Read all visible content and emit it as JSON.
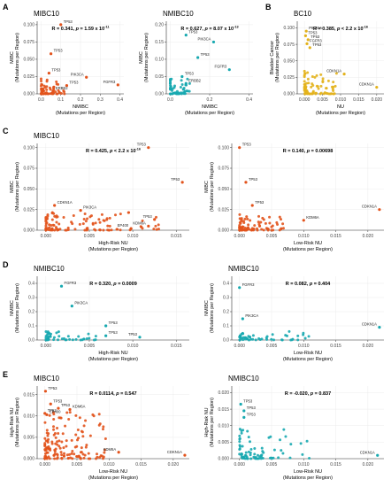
{
  "figure": {
    "panel_letters": [
      "A",
      "B",
      "C",
      "D",
      "E"
    ]
  },
  "chart_data": [
    {
      "id": "A1",
      "panel": "A",
      "type": "scatter",
      "title": "MIBC10",
      "xlabel": "NMIBC",
      "xlabel2": "(Mutations per Region)",
      "ylabel": "MIBC",
      "ylabel2": "(Mutations per Region)",
      "annotation": {
        "prefix": "R = 0.341, ",
        "p": "p",
        "mid": " = 1.59 x 10",
        "sup": "-11"
      },
      "xlim": [
        -0.02,
        0.42
      ],
      "ylim": [
        0,
        0.105
      ],
      "xticks": [
        0.0,
        0.1,
        0.2,
        0.3,
        0.4
      ],
      "xtick_labels": [
        "0.0",
        "0.1",
        "0.2",
        "0.3",
        "0.4"
      ],
      "yticks": [
        0.0,
        0.025,
        0.05,
        0.075,
        0.1
      ],
      "ytick_labels": [
        "0.000",
        "0.025",
        "0.050",
        "0.075",
        "0.100"
      ],
      "color": "#e2531c",
      "labeled_points": [
        {
          "label": "TP53",
          "x": 0.1,
          "y": 0.1
        },
        {
          "label": "TP53",
          "x": 0.05,
          "y": 0.058
        },
        {
          "label": "PIK3CA",
          "x": 0.23,
          "y": 0.024
        },
        {
          "label": "FGFR3",
          "x": 0.39,
          "y": 0.013
        },
        {
          "label": "TP53",
          "x": 0.13,
          "y": 0.012
        },
        {
          "label": "TP53",
          "x": 0.04,
          "y": 0.03
        },
        {
          "label": "ERBB2",
          "x": 0.06,
          "y": 0.004
        }
      ],
      "cluster": {
        "x": [
          0.0,
          0.12
        ],
        "y": [
          0.0,
          0.022
        ],
        "n": 70
      }
    },
    {
      "id": "A2",
      "panel": "A",
      "type": "scatter",
      "title": "NMIBC10",
      "xlabel": "NMIBC",
      "xlabel2": "(Mutations per Region)",
      "ylabel": "MIBC",
      "ylabel2": "(Mutations per Region)",
      "annotation": {
        "prefix": "R = 0.627, ",
        "p": "p",
        "mid": " = 8.07 x 10",
        "sup": "-13"
      },
      "xlim": [
        -0.02,
        0.42
      ],
      "ylim": [
        0,
        0.21
      ],
      "xticks": [
        0.0,
        0.2,
        0.4
      ],
      "xtick_labels": [
        "0.0",
        "0.2",
        "0.4"
      ],
      "yticks": [
        0.0,
        0.05,
        0.1,
        0.15,
        0.2
      ],
      "ytick_labels": [
        "0.00",
        "0.05",
        "0.10",
        "0.15",
        "0.20"
      ],
      "color": "#17a9b0",
      "labeled_points": [
        {
          "label": "TP53",
          "x": 0.08,
          "y": 0.17
        },
        {
          "label": "PIK3CA",
          "x": 0.22,
          "y": 0.15
        },
        {
          "label": "TP53",
          "x": 0.14,
          "y": 0.105
        },
        {
          "label": "FGFR3",
          "x": 0.3,
          "y": 0.07
        },
        {
          "label": "TP53",
          "x": 0.06,
          "y": 0.05
        },
        {
          "label": "ERBB2",
          "x": 0.08,
          "y": 0.03
        }
      ],
      "cluster": {
        "x": [
          0.0,
          0.1
        ],
        "y": [
          0.0,
          0.045
        ],
        "n": 55
      }
    },
    {
      "id": "B",
      "panel": "B",
      "type": "scatter",
      "title": "BC10",
      "xlabel": "NU",
      "xlabel2": "(Mutations per Region)",
      "ylabel": "Bladder Cancer",
      "ylabel2": "(Mutations per Region)",
      "annotation": {
        "prefix": "R = 0.385, ",
        "p": "p",
        "mid": " < 2.2 x 10",
        "sup": "-16"
      },
      "xlim": [
        -0.002,
        0.022
      ],
      "ylim": [
        0,
        0.11
      ],
      "xticks": [
        0.0,
        0.005,
        0.01,
        0.015,
        0.02
      ],
      "xtick_labels": [
        "0.000",
        "0.005",
        "0.010",
        "0.015",
        "0.020"
      ],
      "yticks": [
        0.0,
        0.025,
        0.05,
        0.075,
        0.1
      ],
      "ytick_labels": [
        "0.000",
        "0.025",
        "0.050",
        "0.075",
        "0.100"
      ],
      "color": "#e3b21c",
      "labeled_points": [
        {
          "label": "PIK3CA",
          "x": 0.0005,
          "y": 0.095
        },
        {
          "label": "TP53",
          "x": 0.0003,
          "y": 0.088
        },
        {
          "label": "TP53",
          "x": 0.001,
          "y": 0.082
        },
        {
          "label": "FGFR3",
          "x": 0.0007,
          "y": 0.076
        },
        {
          "label": "TP53",
          "x": 0.0015,
          "y": 0.07
        },
        {
          "label": "CDKN1A",
          "x": 0.011,
          "y": 0.03
        },
        {
          "label": "CDKN1A",
          "x": 0.02,
          "y": 0.01
        }
      ],
      "cluster": {
        "x": [
          0.0,
          0.009
        ],
        "y": [
          0.0,
          0.035
        ],
        "n": 80
      }
    },
    {
      "id": "C1",
      "panel": "C",
      "type": "scatter",
      "title": "MIBC10",
      "xlabel": "High-Risk NU",
      "xlabel2": "(Mutations per Region)",
      "ylabel": "MIBC",
      "ylabel2": "(Mutations per Region)",
      "annotation": {
        "prefix": "R = 0.425, ",
        "p": "p",
        "mid": " < 2.2 x 10",
        "sup": "-16"
      },
      "xlim": [
        -0.001,
        0.0165
      ],
      "ylim": [
        0,
        0.105
      ],
      "xticks": [
        0.0,
        0.005,
        0.01,
        0.015
      ],
      "xtick_labels": [
        "0.000",
        "0.005",
        "0.010",
        "0.015"
      ],
      "yticks": [
        0.0,
        0.025,
        0.05,
        0.075,
        0.1
      ],
      "ytick_labels": [
        "0.000",
        "0.025",
        "0.050",
        "0.075",
        "0.100"
      ],
      "color": "#e2531c",
      "labeled_points": [
        {
          "label": "TP53",
          "x": 0.0118,
          "y": 0.1
        },
        {
          "label": "TP53",
          "x": 0.0157,
          "y": 0.058
        },
        {
          "label": "CDKN1A",
          "x": 0.001,
          "y": 0.03
        },
        {
          "label": "PIK3CA",
          "x": 0.004,
          "y": 0.024
        },
        {
          "label": "TP53",
          "x": 0.0125,
          "y": 0.013
        },
        {
          "label": "KDM6A",
          "x": 0.0118,
          "y": 0.005
        },
        {
          "label": "EP400",
          "x": 0.0098,
          "y": 0.002
        }
      ],
      "cluster": {
        "x": [
          0.0,
          0.013
        ],
        "y": [
          0.0,
          0.022
        ],
        "n": 110
      }
    },
    {
      "id": "C2",
      "panel": "C",
      "type": "scatter",
      "title": "",
      "xlabel": "Low-Risk NU",
      "xlabel2": "(Mutations per Region)",
      "ylabel": "MIBC",
      "ylabel2": "(Mutations per Region)",
      "annotation": {
        "prefix": "R = 0.140, ",
        "p": "p",
        "mid": " = 0.00698",
        "sup": ""
      },
      "xlim": [
        -0.0012,
        0.0225
      ],
      "ylim": [
        0,
        0.105
      ],
      "xticks": [
        0.0,
        0.005,
        0.01,
        0.015,
        0.02
      ],
      "xtick_labels": [
        "0.000",
        "0.005",
        "0.010",
        "0.015",
        "0.020"
      ],
      "yticks": [
        0.0,
        0.025,
        0.05,
        0.075,
        0.1
      ],
      "ytick_labels": [
        "0.000",
        "0.025",
        "0.050",
        "0.075",
        "0.100"
      ],
      "color": "#e2531c",
      "labeled_points": [
        {
          "label": "TP53",
          "x": 0.0,
          "y": 0.1
        },
        {
          "label": "TP53",
          "x": 0.001,
          "y": 0.058
        },
        {
          "label": "TP53",
          "x": 0.002,
          "y": 0.03
        },
        {
          "label": "KDM6A",
          "x": 0.01,
          "y": 0.012
        },
        {
          "label": "CDKN1A",
          "x": 0.0218,
          "y": 0.025
        }
      ],
      "cluster": {
        "x": [
          0.0,
          0.007
        ],
        "y": [
          0.0,
          0.02
        ],
        "n": 100
      }
    },
    {
      "id": "D1",
      "panel": "D",
      "type": "scatter",
      "title": "NMIBC10",
      "xlabel": "High-Risk NU",
      "xlabel2": "(Mutations per Region)",
      "ylabel": "NMIBC",
      "ylabel2": "(Mutations per Region)",
      "annotation": {
        "prefix": "R = 0.320, ",
        "p": "p",
        "mid": " = 0.0009",
        "sup": ""
      },
      "xlim": [
        -0.001,
        0.0165
      ],
      "ylim": [
        0,
        0.45
      ],
      "xticks": [
        0.0,
        0.005,
        0.01,
        0.015
      ],
      "xtick_labels": [
        "0.000",
        "0.005",
        "0.010",
        "0.015"
      ],
      "yticks": [
        0.0,
        0.1,
        0.2,
        0.3,
        0.4
      ],
      "ytick_labels": [
        "0.0",
        "0.1",
        "0.2",
        "0.3",
        "0.4"
      ],
      "color": "#17a9b0",
      "labeled_points": [
        {
          "label": "FGFR3",
          "x": 0.0018,
          "y": 0.38
        },
        {
          "label": "PIK3CA",
          "x": 0.003,
          "y": 0.24
        },
        {
          "label": "TP53",
          "x": 0.0069,
          "y": 0.1
        },
        {
          "label": "TP53",
          "x": 0.0069,
          "y": 0.03
        },
        {
          "label": "TP53",
          "x": 0.0108,
          "y": 0.02
        }
      ],
      "cluster": {
        "x": [
          0.0,
          0.006
        ],
        "y": [
          0.0,
          0.06
        ],
        "n": 45
      }
    },
    {
      "id": "D2",
      "panel": "D",
      "type": "scatter",
      "title": "NMIBC10",
      "xlabel": "Low-Risk NU",
      "xlabel2": "(Mutations per Region)",
      "ylabel": "NMIBC",
      "ylabel2": "(Mutations per Region)",
      "annotation": {
        "prefix": "R = 0.082, ",
        "p": "p",
        "mid": " = 0.404",
        "sup": ""
      },
      "xlim": [
        -0.0012,
        0.0225
      ],
      "ylim": [
        0,
        0.45
      ],
      "xticks": [
        0.0,
        0.005,
        0.01,
        0.015,
        0.02
      ],
      "xtick_labels": [
        "0.000",
        "0.005",
        "0.010",
        "0.015",
        "0.020"
      ],
      "yticks": [
        0.0,
        0.1,
        0.2,
        0.3,
        0.4
      ],
      "ytick_labels": [
        "0.0",
        "0.1",
        "0.2",
        "0.3",
        "0.4"
      ],
      "color": "#17a9b0",
      "labeled_points": [
        {
          "label": "FGFR3",
          "x": 0.0,
          "y": 0.37
        },
        {
          "label": "PIK3CA",
          "x": 0.0005,
          "y": 0.15
        },
        {
          "label": "CDKN1A",
          "x": 0.0218,
          "y": 0.09
        }
      ],
      "cluster": {
        "x": [
          0.0,
          0.011
        ],
        "y": [
          0.0,
          0.06
        ],
        "n": 50
      }
    },
    {
      "id": "E1",
      "panel": "E",
      "type": "scatter",
      "title": "MIBC10",
      "xlabel": "Low-Risk NU",
      "xlabel2": "(Mutations per Region)",
      "ylabel": "High-Risk NU",
      "ylabel2": "(Mutations per Region)",
      "annotation": {
        "prefix": "R = 0.0114, ",
        "p": "p",
        "mid": " = 0.547",
        "sup": ""
      },
      "xlim": [
        -0.0012,
        0.0225
      ],
      "ylim": [
        0,
        0.017
      ],
      "xticks": [
        0.0,
        0.005,
        0.01,
        0.015,
        0.02
      ],
      "xtick_labels": [
        "0.000",
        "0.005",
        "0.010",
        "0.015",
        "0.020"
      ],
      "yticks": [
        0.0,
        0.005,
        0.01,
        0.015
      ],
      "ytick_labels": [
        "0.000",
        "0.005",
        "0.010",
        "0.015"
      ],
      "color": "#e2531c",
      "labeled_points": [
        {
          "label": "TP53",
          "x": 0.0001,
          "y": 0.0158
        },
        {
          "label": "TP53",
          "x": 0.0009,
          "y": 0.0128
        },
        {
          "label": "TP53",
          "x": 0.0021,
          "y": 0.0118
        },
        {
          "label": "KDM6A",
          "x": 0.0039,
          "y": 0.0115
        },
        {
          "label": "TP53",
          "x": 0.0,
          "y": 0.0106
        },
        {
          "label": "EP400",
          "x": 0.0003,
          "y": 0.0103
        },
        {
          "label": "KDM6A",
          "x": 0.0115,
          "y": 0.0015
        },
        {
          "label": "CDKN1A",
          "x": 0.0218,
          "y": 0.0008
        }
      ],
      "cluster": {
        "x": [
          0.0,
          0.0095
        ],
        "y": [
          0.0,
          0.011
        ],
        "n": 150
      }
    },
    {
      "id": "E2",
      "panel": "E",
      "type": "scatter",
      "title": "NMIBC10",
      "xlabel": "Low-Risk NU",
      "xlabel2": "(Mutations per Region)",
      "ylabel": "High-Risk NU",
      "ylabel2": "(Mutations per Region)",
      "annotation": {
        "prefix": "R = -0.020, ",
        "p": "p",
        "mid": " = 0.837",
        "sup": ""
      },
      "xlim": [
        -0.0012,
        0.0225
      ],
      "ylim": [
        0,
        0.022
      ],
      "xticks": [
        0.0,
        0.005,
        0.01,
        0.015,
        0.02
      ],
      "xtick_labels": [
        "0.000",
        "0.005",
        "0.010",
        "0.015",
        "0.020"
      ],
      "yticks": [
        0.0,
        0.005,
        0.01,
        0.015,
        0.02
      ],
      "ytick_labels": [
        "0.000",
        "0.005",
        "0.010",
        "0.015",
        "0.020"
      ],
      "color": "#17a9b0",
      "labeled_points": [
        {
          "label": "TP53",
          "x": 0.0002,
          "y": 0.0165
        },
        {
          "label": "TP53",
          "x": 0.0007,
          "y": 0.0145
        },
        {
          "label": "TP53",
          "x": 0.0007,
          "y": 0.0125
        },
        {
          "label": "CDKN1A",
          "x": 0.0215,
          "y": 0.001
        }
      ],
      "cluster": {
        "x": [
          0.0,
          0.011
        ],
        "y": [
          0.0,
          0.009
        ],
        "n": 75
      }
    }
  ]
}
